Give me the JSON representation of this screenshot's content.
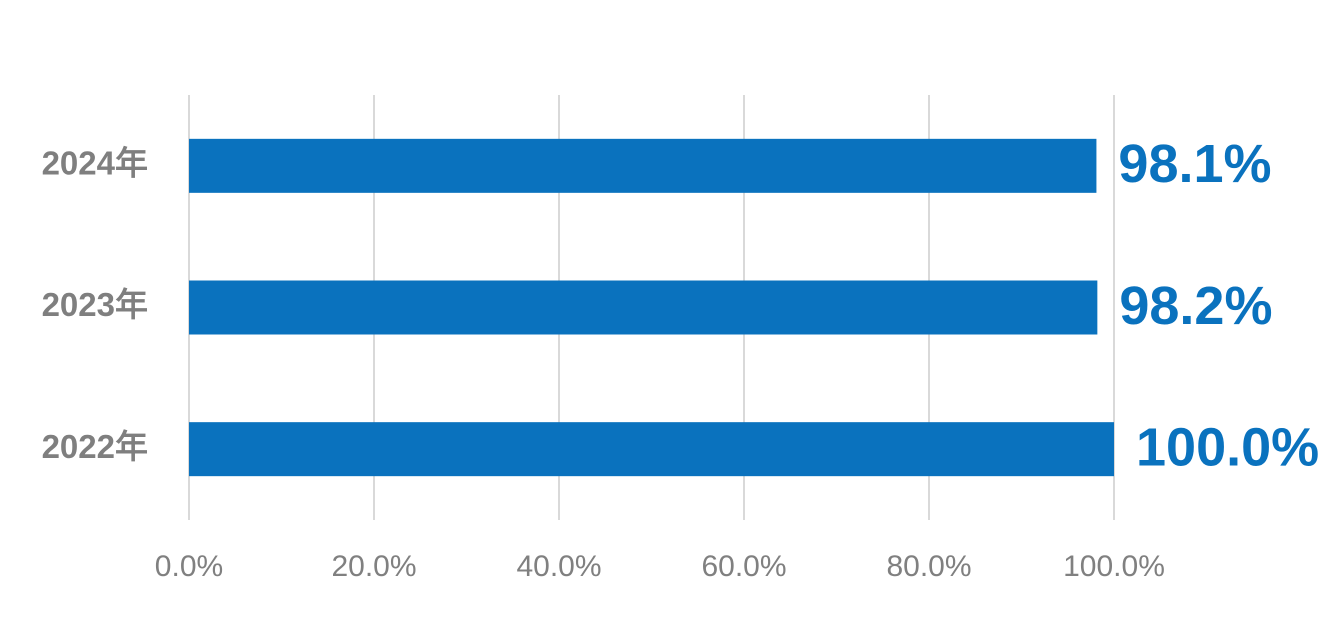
{
  "chart_data": {
    "type": "bar",
    "orientation": "horizontal",
    "categories": [
      "2024年",
      "2023年",
      "2022年"
    ],
    "values": [
      98.1,
      98.2,
      100.0
    ],
    "value_labels": [
      "98.1%",
      "98.2%",
      "100.0%"
    ],
    "color": "#0a72be",
    "xlim": [
      0,
      100
    ],
    "xticks": [
      {
        "value": 0,
        "label": "0.0%"
      },
      {
        "value": 20,
        "label": "20.0%"
      },
      {
        "value": 40,
        "label": "40.0%"
      },
      {
        "value": 60,
        "label": "60.0%"
      },
      {
        "value": 80,
        "label": "80.0%"
      },
      {
        "value": 100,
        "label": "100.0%"
      }
    ],
    "grid": true
  }
}
